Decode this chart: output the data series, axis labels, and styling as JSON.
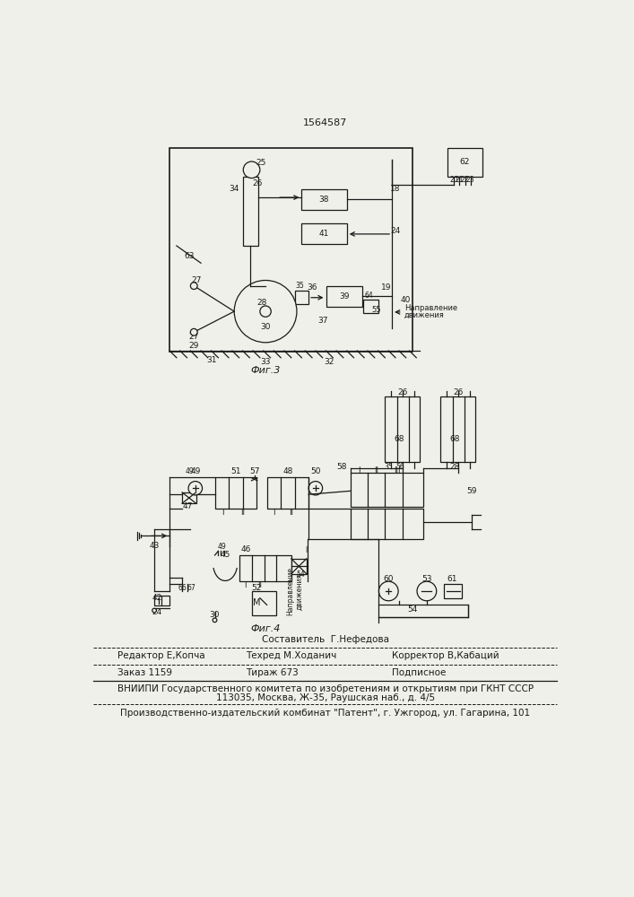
{
  "title": "1564587",
  "fig3_label": "Фиг.3",
  "fig4_label": "Фиг.4",
  "footer_line1": "Составитель  Г.Нефедова",
  "footer_line2_left": "Редактор Е,Копча",
  "footer_line2_mid": "Техред М.Ходанич",
  "footer_line2_right": "Корректор В,Кабаций",
  "footer_line3_left": "Заказ 1159",
  "footer_line3_mid": "Тираж 673",
  "footer_line3_right": "Подписное",
  "footer_line4": "ВНИИПИ Государственного комитета по изобретениям и открытиям при ГКНТ СССР",
  "footer_line5": "113035, Москва, Ж-35, Раушская наб., д. 4/5",
  "footer_line6": "Производственно-издательский комбинат \"Патент\", г. Ужгород, ул. Гагарина, 101",
  "bg_color": "#f0f0ea",
  "line_color": "#1a1a1a"
}
